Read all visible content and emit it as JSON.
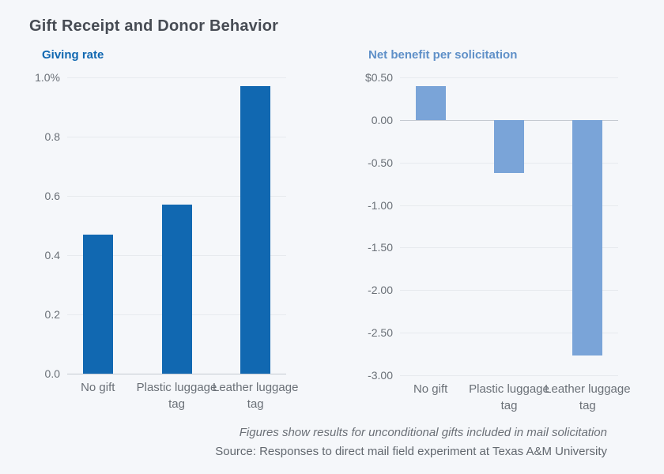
{
  "title": "Gift Receipt and Donor Behavior",
  "footer": {
    "note": "Figures show results for unconditional gifts included in mail solicitation",
    "source": "Source: Responses to direct mail field experiment at Texas A&M University"
  },
  "colors": {
    "background": "#f5f7fa",
    "title_text": "#474c54",
    "dark_blue": "#1168b1",
    "light_blue": "#7aa4d8",
    "tick_text": "#6a7077",
    "gridline": "#e7eaee",
    "axis_line": "#c5cad1"
  },
  "chart_data": [
    {
      "type": "bar",
      "title": "Giving rate",
      "title_color": "#1168b1",
      "bar_color": "#1168b1",
      "categories": [
        "No gift",
        "Plastic luggage tag",
        "Leather luggage tag"
      ],
      "values": [
        0.47,
        0.57,
        0.97
      ],
      "ylim": [
        0.0,
        1.0
      ],
      "baseline": 0.0,
      "grid": true,
      "legend": "none",
      "yticks": [
        {
          "label": "1.0%",
          "value": 1.0
        },
        {
          "label": "0.8",
          "value": 0.8
        },
        {
          "label": "0.6",
          "value": 0.6
        },
        {
          "label": "0.4",
          "value": 0.4
        },
        {
          "label": "0.2",
          "value": 0.2
        },
        {
          "label": "0.0",
          "value": 0.0
        }
      ]
    },
    {
      "type": "bar",
      "title": "Net benefit per solicitation",
      "title_color": "#5f90c8",
      "bar_color": "#7aa4d8",
      "categories": [
        "No gift",
        "Plastic luggage tag",
        "Leather luggage tag"
      ],
      "values": [
        0.4,
        -0.62,
        -2.77
      ],
      "ylim": [
        -3.0,
        0.5
      ],
      "baseline": 0.0,
      "grid": true,
      "legend": "none",
      "yticks": [
        {
          "label": "$0.50",
          "value": 0.5
        },
        {
          "label": "0.00",
          "value": 0.0
        },
        {
          "label": "-0.50",
          "value": -0.5
        },
        {
          "label": "-1.00",
          "value": -1.0
        },
        {
          "label": "-1.50",
          "value": -1.5
        },
        {
          "label": "-2.00",
          "value": -2.0
        },
        {
          "label": "-2.50",
          "value": -2.5
        },
        {
          "label": "-3.00",
          "value": -3.0
        }
      ]
    }
  ]
}
